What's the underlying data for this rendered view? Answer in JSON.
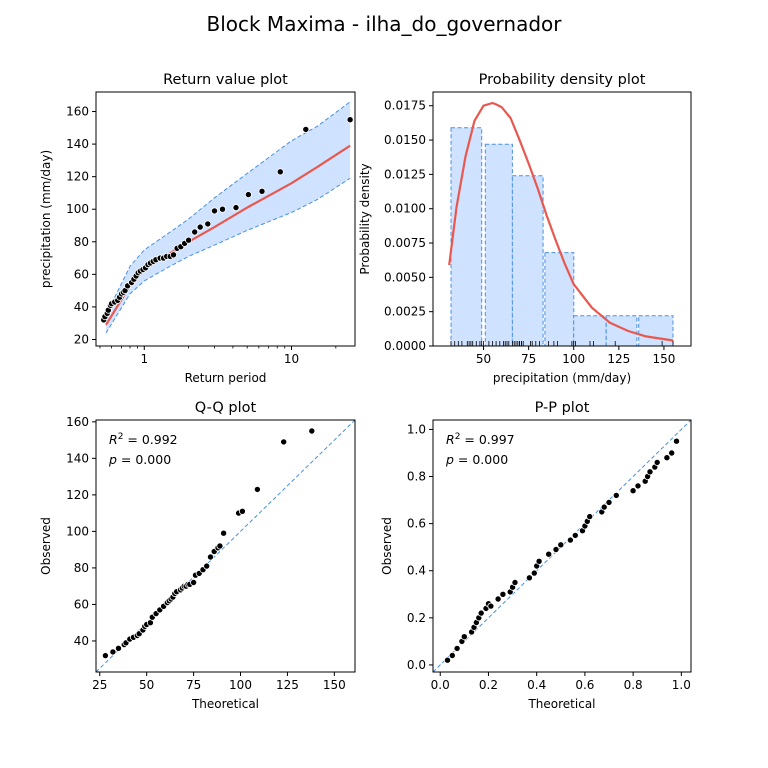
{
  "figure": {
    "title": "Block Maxima - ilha_do_governador"
  },
  "chart_data": [
    {
      "id": "return",
      "type": "line",
      "title": "Return value plot",
      "xlabel": "Return period",
      "ylabel": "precipitation (mm/day)",
      "xscale": "log",
      "xlim": [
        0.47,
        27
      ],
      "ylim": [
        16,
        172
      ],
      "xticks": [
        1,
        10
      ],
      "yticks": [
        20,
        40,
        60,
        80,
        100,
        120,
        140,
        160
      ],
      "fit_line": {
        "x": [
          0.55,
          0.8,
          1,
          1.5,
          2,
          3,
          5,
          10,
          15,
          25
        ],
        "y": [
          29,
          53,
          63,
          73,
          80,
          89,
          101,
          116,
          126,
          139
        ]
      },
      "ci_lower": {
        "x": [
          0.55,
          0.8,
          1,
          1.5,
          2,
          3,
          5,
          10,
          15,
          25
        ],
        "y": [
          24,
          48,
          56,
          65,
          71,
          78,
          87,
          98,
          106,
          119
        ]
      },
      "ci_upper": {
        "x": [
          0.55,
          0.8,
          1,
          1.5,
          2,
          3,
          5,
          10,
          15,
          25
        ],
        "y": [
          35,
          65,
          75,
          86,
          94,
          107,
          122,
          142,
          151,
          166
        ]
      },
      "points": {
        "x": [
          0.53,
          0.54,
          0.56,
          0.57,
          0.59,
          0.6,
          0.63,
          0.66,
          0.68,
          0.7,
          0.72,
          0.74,
          0.77,
          0.82,
          0.85,
          0.88,
          0.91,
          0.94,
          0.98,
          1.02,
          1.06,
          1.1,
          1.15,
          1.2,
          1.28,
          1.35,
          1.42,
          1.5,
          1.58,
          1.67,
          1.77,
          1.88,
          2.0,
          2.2,
          2.4,
          2.7,
          3.0,
          3.4,
          4.2,
          5.1,
          6.3,
          8.4,
          12.5,
          25.0
        ],
        "y": [
          32,
          34,
          36,
          38,
          41,
          42,
          43,
          44,
          46,
          48,
          49,
          50,
          53,
          55,
          57,
          59,
          61,
          62,
          63,
          64,
          66,
          67,
          68,
          69,
          70,
          70,
          71,
          71,
          72,
          76,
          77,
          79,
          81,
          86,
          89,
          91,
          99,
          100,
          101,
          109,
          111,
          123,
          149,
          155
        ]
      }
    },
    {
      "id": "density",
      "type": "bar",
      "title": "Probability density plot",
      "xlabel": "precipitation (mm/day)",
      "ylabel": "Probability density",
      "xlim": [
        22,
        165
      ],
      "ylim": [
        0,
        0.0185
      ],
      "xticks": [
        50,
        75,
        100,
        125,
        150
      ],
      "yticks": [
        0.0,
        0.0025,
        0.005,
        0.0075,
        0.01,
        0.0125,
        0.015,
        0.0175
      ],
      "ytick_labels": [
        "0.0000",
        "0.0025",
        "0.0050",
        "0.0075",
        "0.0100",
        "0.0125",
        "0.0150",
        "0.0175"
      ],
      "bins": [
        {
          "x0": 32,
          "x1": 49,
          "height": 0.0159
        },
        {
          "x0": 51,
          "x1": 66,
          "height": 0.0147
        },
        {
          "x0": 66,
          "x1": 83,
          "height": 0.0124
        },
        {
          "x0": 84,
          "x1": 100,
          "height": 0.0068
        },
        {
          "x0": 100,
          "x1": 118,
          "height": 0.0022
        },
        {
          "x0": 118,
          "x1": 135,
          "height": 0.0022
        },
        {
          "x0": 136,
          "x1": 155,
          "height": 0.0022
        }
      ],
      "pdf_line": {
        "x": [
          31,
          35,
          40,
          45,
          50,
          55,
          57,
          60,
          65,
          70,
          75,
          80,
          85,
          90,
          95,
          100,
          110,
          120,
          130,
          140,
          155
        ],
        "y": [
          0.0059,
          0.0101,
          0.0138,
          0.0164,
          0.0175,
          0.0177,
          0.0176,
          0.0174,
          0.0166,
          0.015,
          0.0133,
          0.0115,
          0.0095,
          0.0077,
          0.006,
          0.0045,
          0.0028,
          0.0017,
          0.0011,
          0.0007,
          0.0004
        ]
      },
      "rug": [
        32,
        34,
        36,
        38,
        41,
        42,
        43,
        44,
        46,
        48,
        49,
        50,
        53,
        55,
        57,
        59,
        61,
        62,
        63,
        64,
        66,
        67,
        68,
        69,
        70,
        70,
        71,
        71,
        72,
        76,
        77,
        79,
        81,
        86,
        89,
        91,
        99,
        100,
        101,
        109,
        111,
        123,
        149,
        155
      ]
    },
    {
      "id": "qq",
      "type": "scatter",
      "title": "Q-Q plot",
      "xlabel": "Theoretical",
      "ylabel": "Observed",
      "xlim": [
        23,
        161
      ],
      "ylim": [
        23,
        161
      ],
      "xticks": [
        25,
        50,
        75,
        100,
        125,
        150
      ],
      "yticks": [
        40,
        60,
        80,
        100,
        120,
        140,
        160
      ],
      "annotation": {
        "r2": "$R^2 = 0.992$",
        "p": "$p = 0.000$",
        "r2_prefix": "R",
        "r2_sup": "2",
        "r2_value": " = 0.992",
        "p_symbol": "p",
        "p_value": " = 0.000"
      },
      "points": {
        "x": [
          28,
          32,
          35,
          38,
          39,
          41,
          43,
          45,
          46,
          48,
          49,
          50,
          52,
          53,
          55,
          57,
          59,
          61,
          62,
          63,
          64,
          65,
          66,
          68,
          69,
          70,
          71,
          72,
          73,
          75,
          76,
          78,
          80,
          82,
          84,
          86,
          88,
          89,
          91,
          99,
          101,
          109,
          123,
          138
        ],
        "y": [
          32,
          34,
          36,
          38,
          39,
          41,
          42,
          43,
          44,
          46,
          48,
          49,
          50,
          53,
          55,
          57,
          59,
          61,
          62,
          63,
          64,
          66,
          67,
          68,
          69,
          70,
          70,
          71,
          71,
          72,
          76,
          77,
          79,
          81,
          86,
          89,
          91,
          92,
          99,
          110,
          111,
          123,
          149,
          155
        ]
      }
    },
    {
      "id": "pp",
      "type": "scatter",
      "title": "P-P plot",
      "xlabel": "Theoretical",
      "ylabel": "Observed",
      "xlim": [
        -0.03,
        1.04
      ],
      "ylim": [
        -0.03,
        1.04
      ],
      "xticks": [
        0.0,
        0.2,
        0.4,
        0.6,
        0.8,
        1.0
      ],
      "yticks": [
        0.0,
        0.2,
        0.4,
        0.6,
        0.8,
        1.0
      ],
      "tick_labels": [
        "0.0",
        "0.2",
        "0.4",
        "0.6",
        "0.8",
        "1.0"
      ],
      "annotation": {
        "r2": "$R^2 = 0.997$",
        "p": "$p = 0.000$",
        "r2_prefix": "R",
        "r2_sup": "2",
        "r2_value": " = 0.997",
        "p_symbol": "p",
        "p_value": " = 0.000"
      },
      "points": {
        "x": [
          0.03,
          0.05,
          0.07,
          0.09,
          0.1,
          0.13,
          0.14,
          0.15,
          0.16,
          0.17,
          0.19,
          0.2,
          0.21,
          0.24,
          0.26,
          0.29,
          0.3,
          0.31,
          0.37,
          0.39,
          0.4,
          0.41,
          0.45,
          0.48,
          0.5,
          0.54,
          0.56,
          0.59,
          0.6,
          0.61,
          0.62,
          0.67,
          0.68,
          0.7,
          0.73,
          0.8,
          0.82,
          0.85,
          0.86,
          0.87,
          0.89,
          0.9,
          0.94,
          0.96,
          0.98
        ],
        "y": [
          0.02,
          0.04,
          0.07,
          0.1,
          0.12,
          0.14,
          0.16,
          0.18,
          0.2,
          0.22,
          0.24,
          0.26,
          0.25,
          0.28,
          0.3,
          0.31,
          0.33,
          0.35,
          0.37,
          0.39,
          0.42,
          0.44,
          0.47,
          0.49,
          0.51,
          0.53,
          0.55,
          0.57,
          0.59,
          0.61,
          0.63,
          0.65,
          0.67,
          0.69,
          0.72,
          0.74,
          0.76,
          0.78,
          0.8,
          0.82,
          0.84,
          0.86,
          0.88,
          0.9,
          0.95
        ]
      }
    }
  ]
}
